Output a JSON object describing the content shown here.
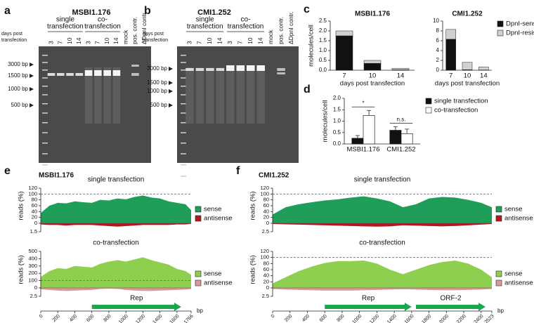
{
  "panels": [
    "a",
    "b",
    "c",
    "d",
    "e",
    "f"
  ],
  "gels": [
    {
      "title": "MSBI1.176",
      "day_label": [
        "days post",
        "transfection"
      ],
      "groups": [
        [
          "single",
          "transfection"
        ],
        [
          "co-",
          "transfection"
        ]
      ],
      "lanes": [
        "3",
        "7",
        "10",
        "14",
        "3",
        "7",
        "10",
        "14",
        "mock",
        "pos. contr.",
        "ΔDpnI contr."
      ],
      "markers": [
        "3000 bp",
        "1500 bp",
        "1000 bp",
        "500 bp"
      ]
    },
    {
      "title": "CMI1.252",
      "day_label": [
        "days post",
        "transfection"
      ],
      "groups": [
        [
          "single",
          "transfection"
        ],
        [
          "co-",
          "transfection"
        ]
      ],
      "lanes": [
        "3",
        "7",
        "10",
        "14",
        "3",
        "7",
        "10",
        "14",
        "mock",
        "pos. contr.",
        "ΔDpnI contr."
      ],
      "markers": [
        "3000 bp",
        "1500 bp",
        "1000 bp",
        "500 bp"
      ]
    }
  ],
  "chart_data": [
    {
      "type": "bar",
      "stacked": true,
      "title": "MSBI1.176",
      "ylabel": "molecules/cell",
      "xlabel": "days post transfection",
      "categories": [
        "7",
        "10",
        "14"
      ],
      "series": [
        {
          "color": "#111111",
          "values": [
            1.75,
            0.35,
            0.02
          ]
        },
        {
          "color": "#d0d0d0",
          "values": [
            0.25,
            0.15,
            0.08
          ]
        }
      ],
      "ylim": [
        0,
        2.5
      ],
      "yticks": [
        {
          "value": 0,
          "label": "0.0"
        },
        0.5,
        {
          "value": 1,
          "label": "1.0"
        },
        1.5,
        {
          "value": 2,
          "label": "2.0"
        },
        2.5
      ]
    },
    {
      "type": "bar",
      "stacked": true,
      "title": "CMI1.252",
      "xlabel": "days post transfection",
      "categories": [
        "7",
        "10",
        "14"
      ],
      "series": [
        {
          "name": "DpnI-sensitive",
          "color": "#111111",
          "values": [
            6.3,
            0.1,
            0.05
          ]
        },
        {
          "name": "DpnI-resistant",
          "color": "#d0d0d0",
          "values": [
            2,
            1.5,
            0.6
          ]
        }
      ],
      "ylim": [
        0,
        10
      ],
      "yticks": [
        0,
        2,
        4,
        6,
        8,
        10
      ],
      "legend": "upper right"
    },
    {
      "type": "bar",
      "ylabel": "molecules/cell",
      "categories": [
        "MSBI1.176",
        "CMI1.252"
      ],
      "series": [
        {
          "name": "single transfection",
          "color": "#111111",
          "values": [
            0.25,
            0.6
          ],
          "errors": [
            0.12,
            0.15
          ]
        },
        {
          "name": "co-transfection",
          "color": "#ffffff",
          "values": [
            1.25,
            0.45
          ],
          "errors": [
            0.22,
            0.2
          ]
        }
      ],
      "ylim": [
        0,
        2
      ],
      "yticks": [
        {
          "value": 0,
          "label": "0.0"
        },
        0.5,
        {
          "value": 1,
          "label": "1.0"
        },
        1.5,
        {
          "value": 2,
          "label": "2.0"
        }
      ],
      "annotations": [
        "*",
        "n.s."
      ],
      "legend": "upper right"
    },
    {
      "type": "area",
      "title": "MSBI1.176",
      "subtitle": "single transfection",
      "ylabel": "reads (%)",
      "x": [
        0,
        100,
        200,
        300,
        400,
        500,
        600,
        700,
        800,
        900,
        1000,
        1100,
        1200,
        1300,
        1400,
        1500,
        1600,
        1700,
        1766
      ],
      "xlim": [
        0,
        1766
      ],
      "series": [
        {
          "name": "sense",
          "color": "#1e9e58",
          "values": [
            35,
            60,
            70,
            68,
            75,
            72,
            70,
            80,
            78,
            85,
            82,
            90,
            95,
            88,
            85,
            75,
            70,
            65,
            45
          ]
        },
        {
          "name": "antisense",
          "color": "#b3191c",
          "axis": "y2",
          "values": [
            0.2,
            0.3,
            0.3,
            0.4,
            0.3,
            0.3,
            0.3,
            0.4,
            0.5,
            0.6,
            0.5,
            0.4,
            0.3,
            0.3,
            0.3,
            0.3,
            0.2,
            0.2,
            0.1
          ]
        }
      ],
      "ylim": [
        0,
        120
      ],
      "yticks": [
        0,
        20,
        40,
        60,
        80,
        100,
        120
      ],
      "y2lim": [
        0,
        1.5
      ],
      "y2ticks": [
        1.5
      ],
      "reference_line": 100,
      "legend": "right"
    },
    {
      "type": "area",
      "subtitle": "co-transfection",
      "ylabel": "reads (%)",
      "xlabel": "bp",
      "x": [
        0,
        100,
        200,
        300,
        400,
        500,
        600,
        700,
        800,
        900,
        1000,
        1100,
        1200,
        1300,
        1400,
        1500,
        1600,
        1700,
        1766
      ],
      "xlim": [
        0,
        1766
      ],
      "xticks": [
        0,
        200,
        400,
        600,
        800,
        1000,
        1200,
        1400,
        1600,
        1766
      ],
      "series": [
        {
          "name": "sense",
          "color": "#8fcf4f",
          "values": [
            150,
            230,
            270,
            260,
            300,
            290,
            280,
            330,
            360,
            380,
            360,
            390,
            420,
            380,
            350,
            320,
            260,
            230,
            180
          ]
        },
        {
          "name": "antisense",
          "color": "#d99a9a",
          "axis": "y2",
          "values": [
            0.4,
            0.6,
            0.8,
            0.9,
            0.8,
            0.7,
            0.6,
            0.3,
            0.2,
            0.3,
            0.6,
            0.8,
            0.9,
            0.9,
            0.8,
            0.7,
            0.6,
            0.5,
            0.3
          ]
        }
      ],
      "ylim": [
        0,
        500
      ],
      "yticks": [
        0,
        100,
        200,
        300,
        400,
        500
      ],
      "y2lim": [
        0,
        2.5
      ],
      "y2ticks": [
        2.5
      ],
      "reference_line": 100,
      "legend": "right",
      "genes": [
        {
          "label": "Rep",
          "start": 600,
          "end": 1650
        }
      ]
    },
    {
      "type": "area",
      "title": "CMI1.252",
      "subtitle": "single transfection",
      "ylabel": "reads (%)",
      "x": [
        0,
        150,
        300,
        450,
        600,
        750,
        900,
        1050,
        1200,
        1350,
        1500,
        1650,
        1800,
        1950,
        2100,
        2250,
        2400,
        2523
      ],
      "xlim": [
        0,
        2523
      ],
      "series": [
        {
          "name": "sense",
          "color": "#1e9e58",
          "values": [
            30,
            55,
            65,
            72,
            78,
            82,
            88,
            92,
            85,
            75,
            55,
            65,
            85,
            90,
            88,
            80,
            70,
            55
          ]
        },
        {
          "name": "antisense",
          "color": "#b3191c",
          "axis": "y2",
          "values": [
            0.2,
            0.3,
            0.4,
            0.5,
            0.6,
            0.7,
            0.8,
            0.9,
            1.0,
            0.9,
            0.6,
            0.7,
            0.8,
            0.9,
            0.8,
            0.6,
            0.4,
            0.2
          ]
        }
      ],
      "ylim": [
        0,
        120
      ],
      "yticks": [
        0,
        20,
        40,
        60,
        80,
        100,
        120
      ],
      "y2lim": [
        0,
        2.5
      ],
      "y2ticks": [
        2.5
      ],
      "reference_line": 100,
      "legend": "right"
    },
    {
      "type": "area",
      "subtitle": "co-transfection",
      "ylabel": "reads (%)",
      "xlabel": "bp",
      "x": [
        0,
        150,
        300,
        450,
        600,
        750,
        900,
        1050,
        1200,
        1350,
        1500,
        1650,
        1800,
        1950,
        2100,
        2250,
        2400,
        2523
      ],
      "xlim": [
        0,
        2523
      ],
      "xticks": [
        0,
        200,
        400,
        600,
        800,
        1000,
        1200,
        1400,
        1600,
        1800,
        2000,
        2200,
        2400,
        2523
      ],
      "series": [
        {
          "name": "sense",
          "color": "#8fcf4f",
          "values": [
            15,
            35,
            55,
            70,
            82,
            88,
            88,
            90,
            80,
            60,
            45,
            60,
            75,
            85,
            90,
            80,
            60,
            35
          ]
        },
        {
          "name": "antisense",
          "color": "#d99a9a",
          "axis": "y2",
          "values": [
            0.3,
            0.5,
            0.6,
            0.7,
            0.8,
            0.8,
            0.8,
            0.7,
            0.6,
            0.5,
            0.4,
            0.5,
            0.6,
            0.7,
            0.7,
            0.6,
            0.5,
            0.3
          ]
        }
      ],
      "ylim": [
        0,
        120
      ],
      "yticks": [
        0,
        20,
        40,
        60,
        80,
        100,
        120
      ],
      "y2lim": [
        0,
        2.5
      ],
      "y2ticks": [
        2.5
      ],
      "reference_line": 100,
      "legend": "right",
      "genes": [
        {
          "label": "Rep",
          "start": 600,
          "end": 1600
        },
        {
          "label": "ORF-2",
          "start": 1650,
          "end": 2450
        }
      ]
    }
  ]
}
